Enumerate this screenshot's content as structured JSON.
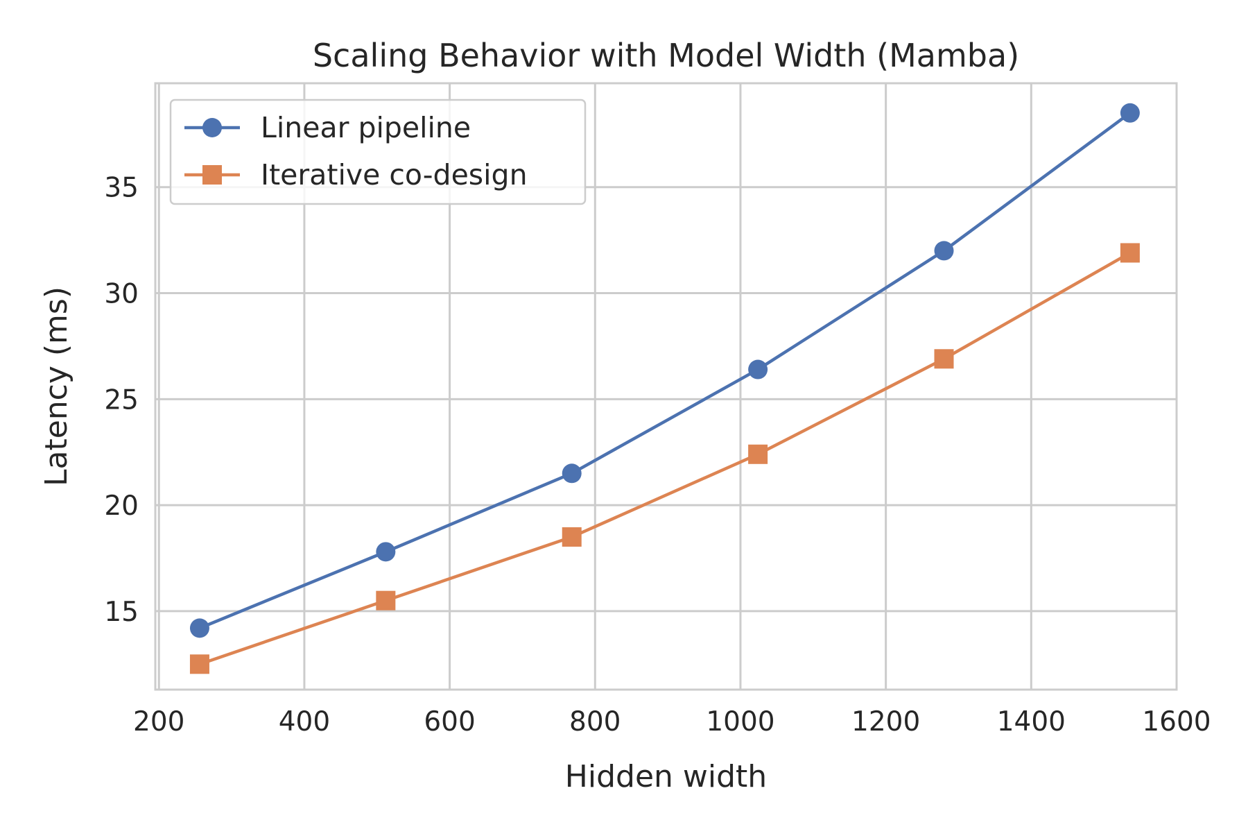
{
  "chart_data": {
    "type": "line",
    "title": "Scaling Behavior with Model Width (Mamba)",
    "xlabel": "Hidden width",
    "ylabel": "Latency (ms)",
    "x": [
      256,
      512,
      768,
      1024,
      1280,
      1536
    ],
    "series": [
      {
        "name": "Linear pipeline",
        "values": [
          14.2,
          17.8,
          21.5,
          26.4,
          32.0,
          38.5
        ],
        "color": "#4c72b0",
        "marker": "circle"
      },
      {
        "name": "Iterative co-design",
        "values": [
          12.5,
          15.5,
          18.5,
          22.4,
          26.9,
          31.9
        ],
        "color": "#dd8452",
        "marker": "square"
      }
    ],
    "xlim": [
      195,
      1600
    ],
    "ylim": [
      11.3,
      39.9
    ],
    "xticks": [
      200,
      400,
      600,
      800,
      1000,
      1200,
      1400,
      1600
    ],
    "xtick_labels": [
      "200",
      "400",
      "600",
      "800",
      "1000",
      "1200",
      "1400",
      "1600"
    ],
    "yticks": [
      15,
      20,
      25,
      30,
      35
    ],
    "ytick_labels": [
      "15",
      "20",
      "25",
      "30",
      "35"
    ],
    "grid": true,
    "legend_position": "top-left"
  }
}
